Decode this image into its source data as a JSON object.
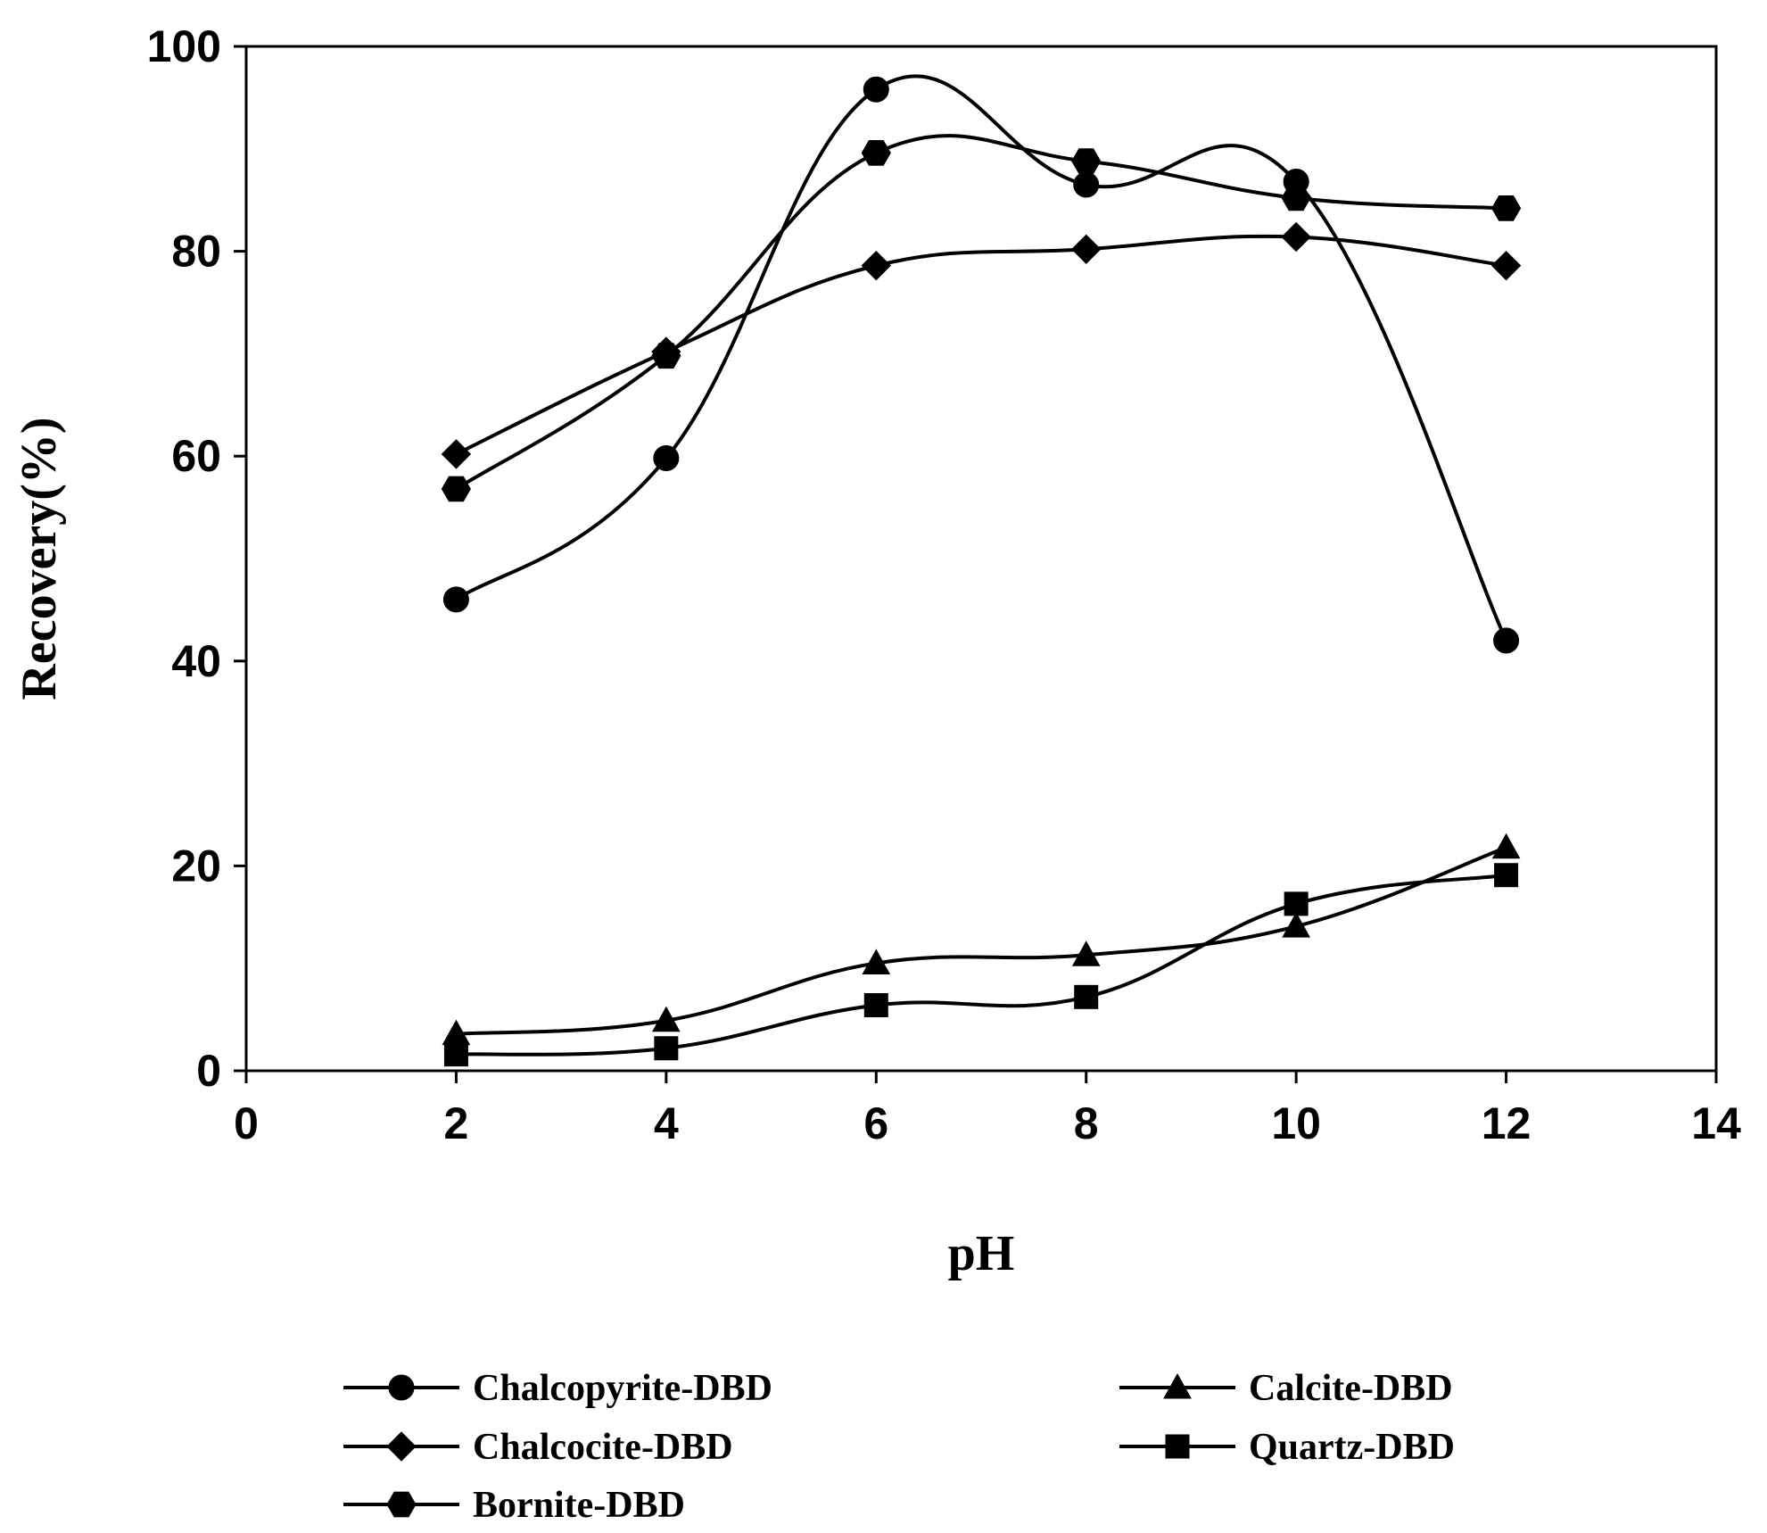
{
  "chart_data": {
    "type": "line",
    "title": "",
    "xlabel": "pH",
    "ylabel": "Recovery(%)",
    "xlim": [
      0,
      14
    ],
    "ylim": [
      0,
      100
    ],
    "xticks": [
      0,
      2,
      4,
      6,
      8,
      10,
      12,
      14
    ],
    "yticks": [
      0,
      20,
      40,
      60,
      80,
      100
    ],
    "grid": false,
    "legend_position": "bottom",
    "series": [
      {
        "name": "Chalcopyrite-DBD",
        "marker": "circle",
        "x": [
          2,
          4,
          6,
          8,
          10,
          12
        ],
        "y": [
          46,
          59.8,
          95.8,
          86.5,
          86.8,
          42
        ]
      },
      {
        "name": "Chalcocite-DBD",
        "marker": "diamond",
        "x": [
          2,
          4,
          6,
          8,
          10,
          12
        ],
        "y": [
          60.2,
          70.2,
          78.6,
          80.2,
          81.4,
          78.6
        ]
      },
      {
        "name": "Bornite-DBD",
        "marker": "hexagon",
        "x": [
          2,
          4,
          6,
          8,
          10,
          12
        ],
        "y": [
          56.8,
          69.8,
          89.6,
          88.8,
          85.2,
          84.2
        ]
      },
      {
        "name": "Calcite-DBD",
        "marker": "triangle",
        "x": [
          2,
          4,
          6,
          8,
          10,
          12
        ],
        "y": [
          3.6,
          4.9,
          10.5,
          11.3,
          14.1,
          21.8
        ]
      },
      {
        "name": "Quartz-DBD",
        "marker": "square",
        "x": [
          2,
          4,
          6,
          8,
          10,
          12
        ],
        "y": [
          1.6,
          2.2,
          6.4,
          7.2,
          16.3,
          19.1
        ]
      }
    ]
  }
}
